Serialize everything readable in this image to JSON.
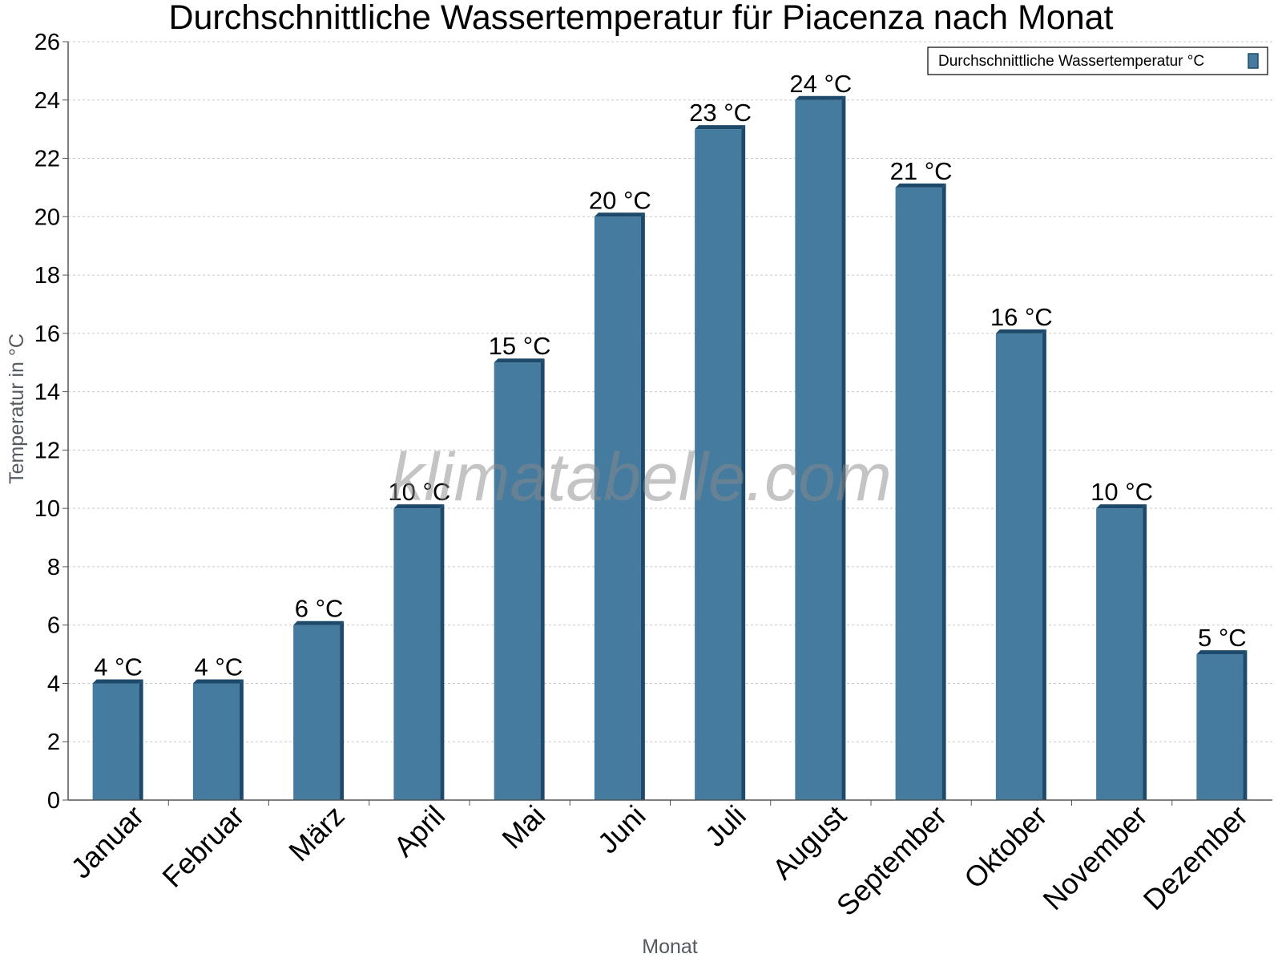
{
  "chart_data": {
    "type": "bar",
    "title": "Durchschnittliche Wassertemperatur für Piacenza nach Monat",
    "xlabel": "Monat",
    "ylabel": "Temperatur in °C",
    "categories": [
      "Januar",
      "Februar",
      "März",
      "April",
      "Mai",
      "Juni",
      "Juli",
      "August",
      "September",
      "Oktober",
      "November",
      "Dezember"
    ],
    "series": [
      {
        "name": "Durchschnittliche Wassertemperatur °C",
        "values": [
          4,
          4,
          6,
          10,
          15,
          20,
          23,
          24,
          21,
          16,
          10,
          5
        ],
        "labels": [
          "4 °C",
          "4 °C",
          "6 °C",
          "10 °C",
          "15 °C",
          "20 °C",
          "23 °C",
          "24 °C",
          "21 °C",
          "16 °C",
          "10 °C",
          "5 °C"
        ]
      }
    ],
    "ylim": [
      0,
      26
    ],
    "yticks": [
      0,
      2,
      4,
      6,
      8,
      10,
      12,
      14,
      16,
      18,
      20,
      22,
      24,
      26
    ],
    "grid": true,
    "legend_position": "top-right",
    "colors": {
      "bar": "#447b9e",
      "bar_dark": "#1d4a6b",
      "axis": "#555555",
      "grid": "#c8c8c8"
    }
  },
  "watermark": "klimatabelle.com"
}
